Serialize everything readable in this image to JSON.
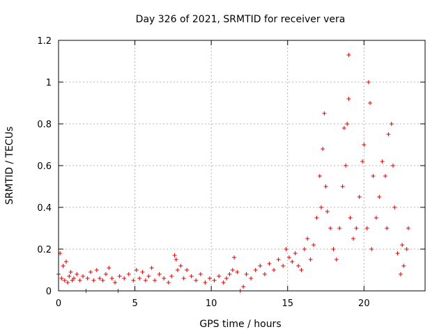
{
  "chart_data": {
    "type": "scatter",
    "title": "Day 326 of 2021, SRMTID for receiver vera",
    "xlabel": "GPS time / hours",
    "ylabel": "SRMTID / TECUs",
    "xlim": [
      0,
      24
    ],
    "ylim": [
      0,
      1.2
    ],
    "x_ticks": [
      0,
      5,
      10,
      15,
      20
    ],
    "x_tick_labels": [
      "0",
      "5",
      "10",
      "15",
      "20"
    ],
    "y_ticks": [
      0,
      0.2,
      0.4,
      0.6,
      0.8,
      1,
      1.2
    ],
    "y_tick_labels": [
      "0",
      "0.2",
      "0.4",
      "0.6",
      "0.8",
      "1",
      "1.2"
    ],
    "grid": true,
    "marker": "plus",
    "color": "#e00000",
    "series": [
      {
        "name": "SRMTID",
        "points": [
          [
            0.0,
            0.08
          ],
          [
            0.1,
            0.18
          ],
          [
            0.2,
            0.06
          ],
          [
            0.3,
            0.12
          ],
          [
            0.4,
            0.05
          ],
          [
            0.5,
            0.14
          ],
          [
            0.6,
            0.04
          ],
          [
            0.7,
            0.07
          ],
          [
            0.8,
            0.09
          ],
          [
            0.9,
            0.05
          ],
          [
            1.0,
            0.06
          ],
          [
            1.2,
            0.08
          ],
          [
            1.4,
            0.05
          ],
          [
            1.6,
            0.07
          ],
          [
            1.8,
            0.0
          ],
          [
            1.9,
            0.06
          ],
          [
            2.1,
            0.09
          ],
          [
            2.3,
            0.05
          ],
          [
            2.5,
            0.1
          ],
          [
            2.7,
            0.06
          ],
          [
            2.9,
            0.05
          ],
          [
            3.1,
            0.08
          ],
          [
            3.3,
            0.11
          ],
          [
            3.5,
            0.06
          ],
          [
            3.7,
            0.04
          ],
          [
            3.9,
            0.0
          ],
          [
            4.0,
            0.07
          ],
          [
            4.3,
            0.06
          ],
          [
            4.6,
            0.08
          ],
          [
            4.9,
            0.05
          ],
          [
            5.1,
            0.1
          ],
          [
            5.3,
            0.06
          ],
          [
            5.5,
            0.09
          ],
          [
            5.7,
            0.05
          ],
          [
            5.9,
            0.07
          ],
          [
            6.1,
            0.11
          ],
          [
            6.3,
            0.05
          ],
          [
            6.6,
            0.08
          ],
          [
            6.9,
            0.06
          ],
          [
            7.2,
            0.04
          ],
          [
            7.4,
            0.07
          ],
          [
            7.6,
            0.17
          ],
          [
            7.7,
            0.15
          ],
          [
            7.8,
            0.1
          ],
          [
            8.0,
            0.12
          ],
          [
            8.2,
            0.06
          ],
          [
            8.4,
            0.1
          ],
          [
            8.7,
            0.07
          ],
          [
            9.0,
            0.05
          ],
          [
            9.3,
            0.08
          ],
          [
            9.6,
            0.04
          ],
          [
            9.9,
            0.06
          ],
          [
            10.2,
            0.05
          ],
          [
            10.5,
            0.07
          ],
          [
            10.8,
            0.04
          ],
          [
            11.0,
            0.06
          ],
          [
            11.2,
            0.08
          ],
          [
            11.4,
            0.1
          ],
          [
            11.5,
            0.16
          ],
          [
            11.7,
            0.09
          ],
          [
            11.9,
            0.0
          ],
          [
            12.1,
            0.02
          ],
          [
            12.3,
            0.08
          ],
          [
            12.6,
            0.06
          ],
          [
            12.9,
            0.1
          ],
          [
            13.2,
            0.12
          ],
          [
            13.5,
            0.08
          ],
          [
            13.8,
            0.13
          ],
          [
            14.1,
            0.1
          ],
          [
            14.4,
            0.15
          ],
          [
            14.7,
            0.12
          ],
          [
            14.9,
            0.2
          ],
          [
            15.1,
            0.16
          ],
          [
            15.3,
            0.14
          ],
          [
            15.5,
            0.18
          ],
          [
            15.7,
            0.12
          ],
          [
            15.9,
            0.1
          ],
          [
            16.1,
            0.2
          ],
          [
            16.3,
            0.25
          ],
          [
            16.5,
            0.15
          ],
          [
            16.7,
            0.22
          ],
          [
            16.9,
            0.35
          ],
          [
            17.1,
            0.55
          ],
          [
            17.2,
            0.4
          ],
          [
            17.3,
            0.68
          ],
          [
            17.4,
            0.85
          ],
          [
            17.5,
            0.5
          ],
          [
            17.6,
            0.38
          ],
          [
            17.8,
            0.3
          ],
          [
            18.0,
            0.2
          ],
          [
            18.2,
            0.15
          ],
          [
            18.4,
            0.3
          ],
          [
            18.6,
            0.5
          ],
          [
            18.7,
            0.78
          ],
          [
            18.8,
            0.6
          ],
          [
            18.9,
            0.8
          ],
          [
            19.0,
            1.13
          ],
          [
            19.0,
            0.92
          ],
          [
            19.1,
            0.35
          ],
          [
            19.3,
            0.25
          ],
          [
            19.5,
            0.3
          ],
          [
            19.7,
            0.45
          ],
          [
            19.9,
            0.62
          ],
          [
            20.0,
            0.7
          ],
          [
            20.2,
            0.3
          ],
          [
            20.3,
            1.0
          ],
          [
            20.4,
            0.9
          ],
          [
            20.5,
            0.2
          ],
          [
            20.6,
            0.55
          ],
          [
            20.8,
            0.35
          ],
          [
            21.0,
            0.45
          ],
          [
            21.2,
            0.62
          ],
          [
            21.4,
            0.55
          ],
          [
            21.5,
            0.3
          ],
          [
            21.6,
            0.75
          ],
          [
            21.8,
            0.8
          ],
          [
            21.9,
            0.6
          ],
          [
            22.0,
            0.4
          ],
          [
            22.2,
            0.18
          ],
          [
            22.4,
            0.08
          ],
          [
            22.5,
            0.22
          ],
          [
            22.6,
            0.12
          ],
          [
            22.8,
            0.2
          ],
          [
            22.9,
            0.3
          ]
        ]
      }
    ]
  }
}
